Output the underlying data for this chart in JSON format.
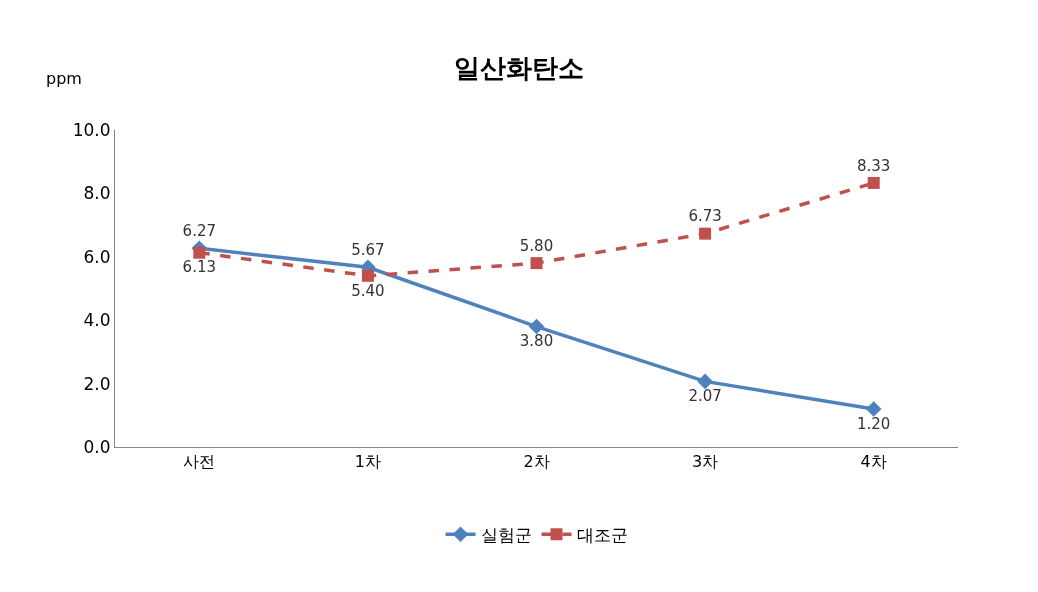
{
  "chart_data": {
    "type": "line",
    "title": "일산화탄소",
    "ylabel": "ppm",
    "categories": [
      "사전",
      "1차",
      "2차",
      "3차",
      "4차"
    ],
    "series": [
      {
        "name": "실험군",
        "color": "#4f81bd",
        "marker": "diamond",
        "line_style": "solid",
        "values": [
          6.27,
          5.67,
          3.8,
          2.07,
          1.2
        ],
        "value_labels": [
          "6.27",
          "5.67",
          "3.80",
          "2.07",
          "1.20"
        ]
      },
      {
        "name": "대조군",
        "color": "#c0504d",
        "marker": "square",
        "line_style": "dashed",
        "values": [
          6.13,
          5.4,
          5.8,
          6.73,
          8.33
        ],
        "value_labels": [
          "6.13",
          "5.40",
          "5.80",
          "6.73",
          "8.33"
        ]
      }
    ],
    "ylim": [
      0,
      10
    ],
    "yticks": [
      {
        "value": 0,
        "label": "0.0"
      },
      {
        "value": 2,
        "label": "2.0"
      },
      {
        "value": 4,
        "label": "4.0"
      },
      {
        "value": 6,
        "label": "6.0"
      },
      {
        "value": 8,
        "label": "8.0"
      },
      {
        "value": 10,
        "label": "10.0"
      }
    ],
    "legend": "bottom"
  }
}
